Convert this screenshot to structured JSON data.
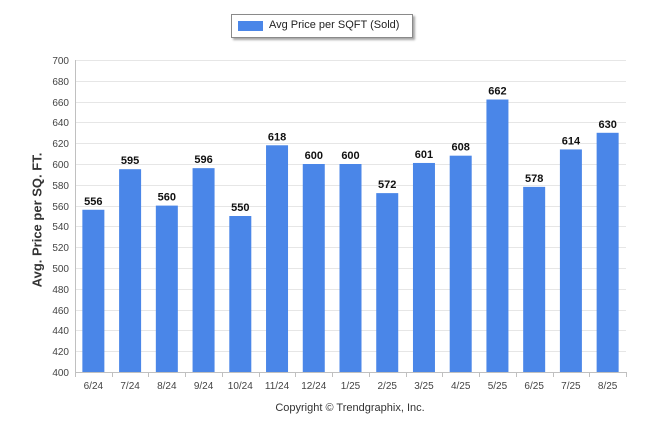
{
  "chart_data": {
    "type": "bar",
    "categories": [
      "6/24",
      "7/24",
      "8/24",
      "9/24",
      "10/24",
      "11/24",
      "12/24",
      "1/25",
      "2/25",
      "3/25",
      "4/25",
      "5/25",
      "6/25",
      "7/25",
      "8/25"
    ],
    "series": [
      {
        "name": "Avg Price per SQFT (Sold)",
        "values": [
          556,
          595,
          560,
          596,
          550,
          618,
          600,
          600,
          572,
          601,
          608,
          662,
          578,
          614,
          630
        ]
      }
    ],
    "title": "",
    "xlabel": "",
    "ylabel": "Avg. Price per SQ. FT.",
    "ylim": [
      400,
      700
    ],
    "yticks": [
      400,
      420,
      440,
      460,
      480,
      500,
      520,
      540,
      560,
      580,
      600,
      620,
      640,
      660,
      680,
      700
    ],
    "grid": true,
    "legend_position": "top-center",
    "data_labels": true,
    "colors": {
      "bar": "#4a86e8",
      "grid": "#e6e6e6",
      "axis": "#c0c0c0"
    }
  },
  "footer": {
    "copyright": "Copyright © Trendgraphix, Inc."
  }
}
